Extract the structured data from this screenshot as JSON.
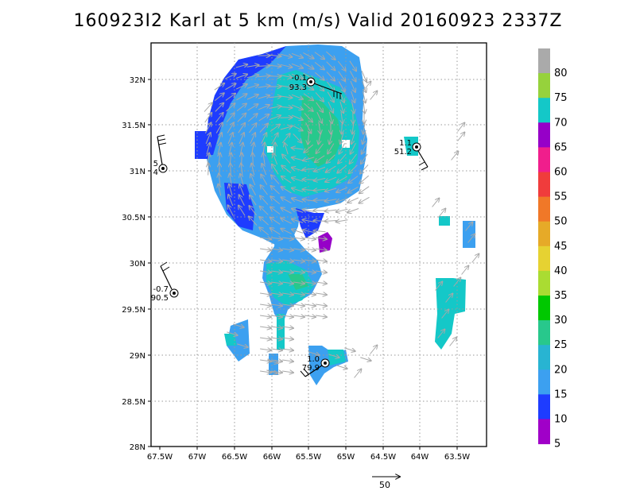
{
  "title": "160923I2 Karl at 5 km (m/s) Valid 20160923 2337Z",
  "axes": {
    "x_ticks": [
      "67.5W",
      "67W",
      "66.5W",
      "66W",
      "65.5W",
      "65W",
      "64.5W",
      "64W",
      "63.5W"
    ],
    "y_ticks": [
      "32N",
      "31.5N",
      "31N",
      "30.5N",
      "30N",
      "29.5N",
      "29N",
      "28.5N",
      "28N"
    ]
  },
  "colorbar": {
    "labels": [
      "80",
      "75",
      "70",
      "65",
      "60",
      "55",
      "50",
      "45",
      "40",
      "35",
      "30",
      "25",
      "20",
      "15",
      "10",
      "5"
    ],
    "colors": [
      "#aaaaaa",
      "#96d23c",
      "#14c8c8",
      "#9600c8",
      "#f01e8c",
      "#f03c3c",
      "#f07828",
      "#e6aa28",
      "#e6d232",
      "#aadc32",
      "#00c800",
      "#28c88c",
      "#28b4d2",
      "#3ca0f0",
      "#1e3cff",
      "#a000c8"
    ]
  },
  "stations": [
    {
      "top": "-0.1",
      "bottom": "93.3"
    },
    {
      "top": "1.1",
      "bottom": "51.2"
    },
    {
      "top": "5",
      "bottom": "4"
    },
    {
      "top": "-0.7",
      "bottom": "90.5"
    },
    {
      "top": "1.0",
      "bottom": "79.9"
    }
  ],
  "reference_vector": {
    "value": "50"
  }
}
